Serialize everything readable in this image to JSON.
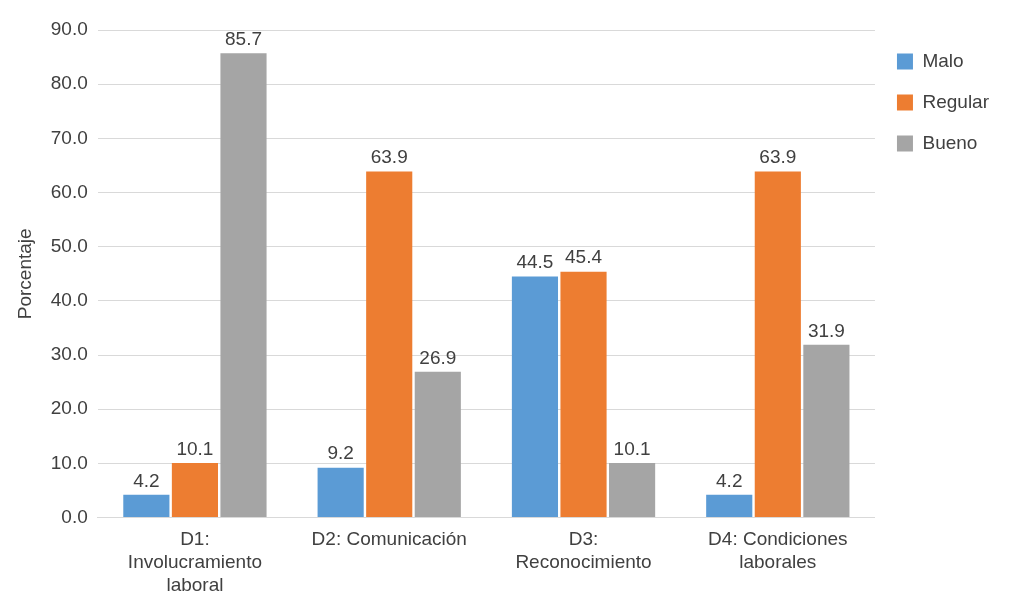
{
  "chart_data": {
    "type": "bar",
    "ylabel": "Porcentaje",
    "categories": [
      "D1: Involucramiento laboral",
      "D2: Comunicación",
      "D3: Reconocimiento",
      "D4: Condiciones laborales"
    ],
    "series": [
      {
        "name": "Malo",
        "color": "#5b9bd5",
        "values": [
          4.2,
          9.2,
          44.5,
          4.2
        ]
      },
      {
        "name": "Regular",
        "color": "#ed7d31",
        "values": [
          10.1,
          63.9,
          45.4,
          63.9
        ]
      },
      {
        "name": "Bueno",
        "color": "#a5a5a5",
        "values": [
          85.7,
          26.9,
          10.1,
          31.9
        ]
      }
    ],
    "ylim": [
      0,
      90
    ],
    "yticks": [
      {
        "value": 0,
        "label": "0.0"
      },
      {
        "value": 10,
        "label": "10.0"
      },
      {
        "value": 20,
        "label": "20.0"
      },
      {
        "value": 30,
        "label": "30.0"
      },
      {
        "value": 40,
        "label": "40.0"
      },
      {
        "value": 50,
        "label": "50.0"
      },
      {
        "value": 60,
        "label": "60.0"
      },
      {
        "value": 70,
        "label": "70.0"
      },
      {
        "value": 80,
        "label": "80.0"
      },
      {
        "value": 90,
        "label": "90.0"
      }
    ],
    "grid": "y",
    "legend": "top right",
    "data_labels": true
  }
}
